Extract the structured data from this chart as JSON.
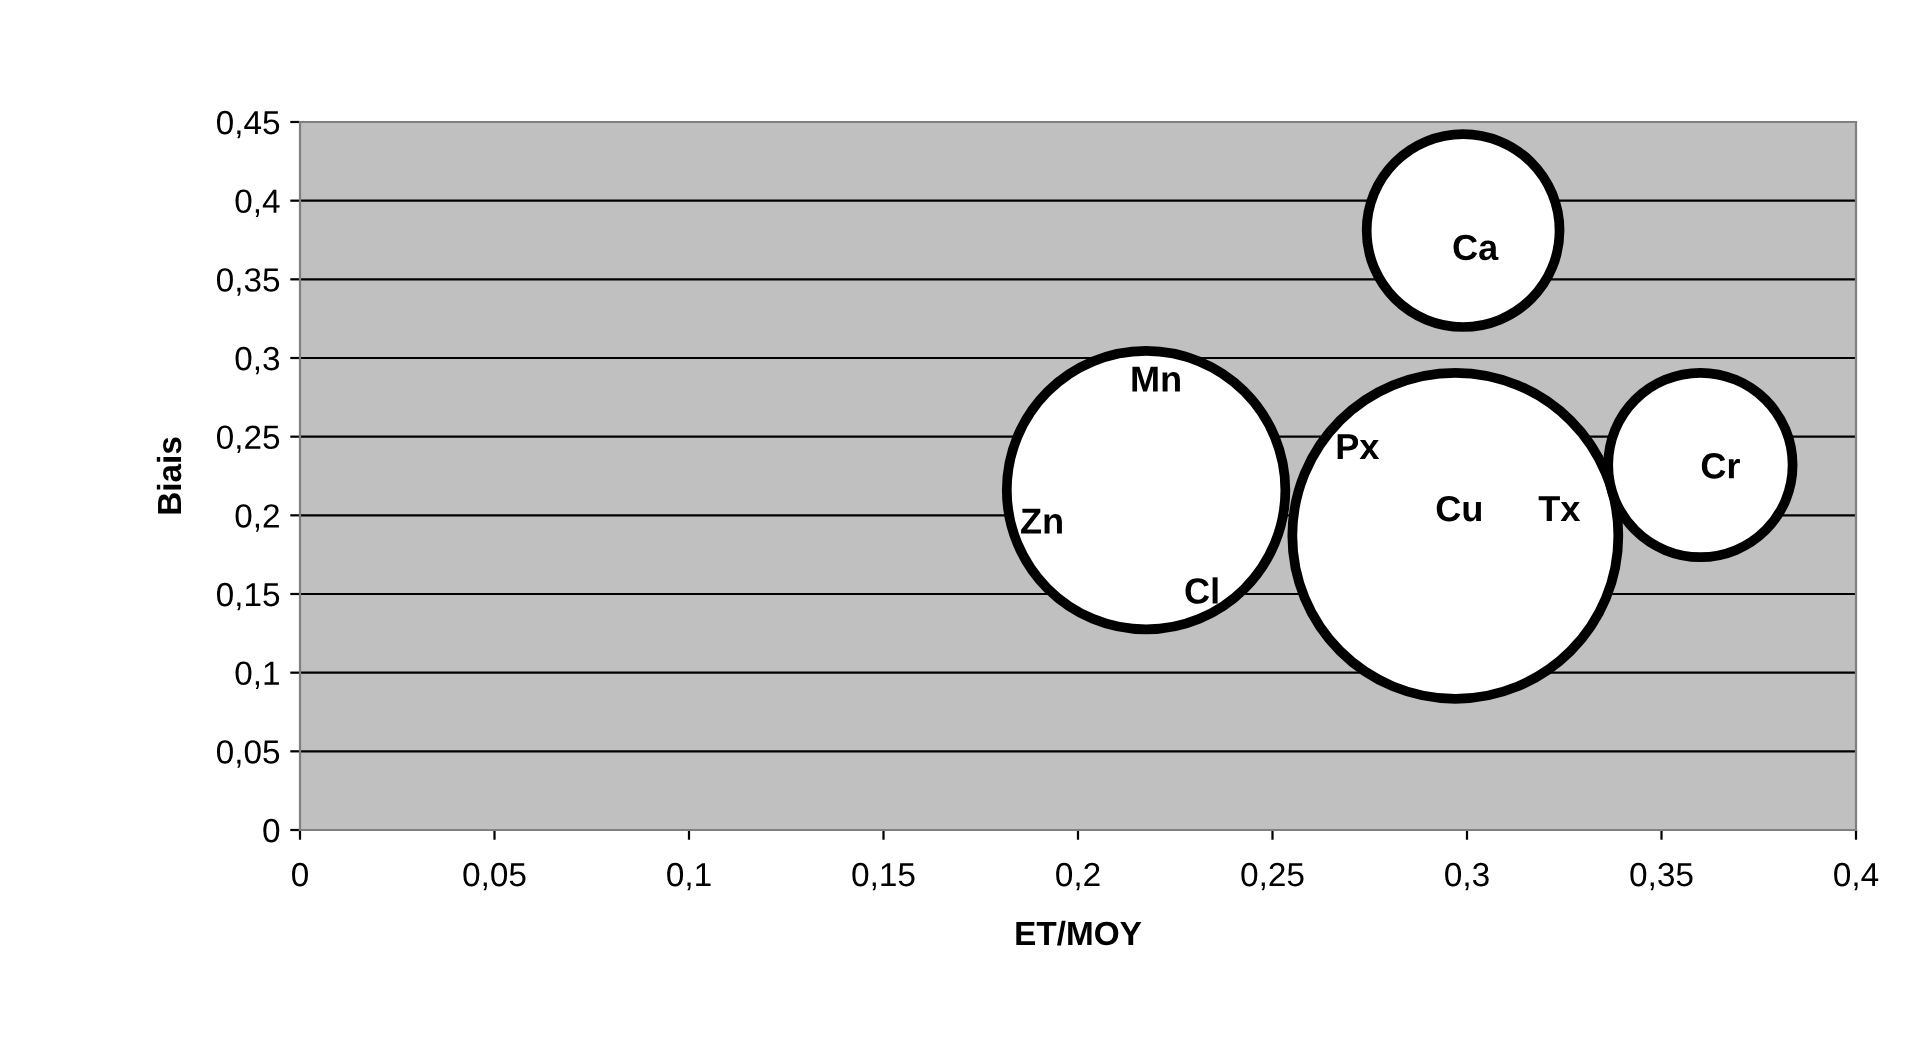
{
  "chart_data": {
    "type": "bubble",
    "xlabel": "ET/MOY",
    "ylabel": "Biais",
    "series": [
      {
        "color": "#ffffff",
        "x": [
          0.2175,
          0.297,
          0.299,
          0.36
        ],
        "values": [
          0.216,
          0.187,
          0.381,
          0.232
        ],
        "sizes": [
          0.73,
          1,
          0.35,
          0.32
        ]
      }
    ],
    "annotations": [
      "Mn",
      "Zn",
      "Cl",
      "Px",
      "Cu",
      "Tx",
      "Ca",
      "Cr"
    ],
    "xlim": [
      0,
      0.4
    ],
    "ylim": [
      0,
      0.45
    ],
    "xticks": [
      0,
      {
        "value": 0.05,
        "label": "0,05"
      },
      {
        "value": 0.1,
        "label": "0,1"
      },
      {
        "value": 0.15,
        "label": "0,15"
      },
      {
        "value": 0.2,
        "label": "0,2"
      },
      {
        "value": 0.25,
        "label": "0,25"
      },
      {
        "value": 0.3,
        "label": "0,3"
      },
      {
        "value": 0.35,
        "label": "0,35"
      },
      {
        "value": 0.4,
        "label": "0,4"
      }
    ],
    "yticks": [
      0,
      {
        "value": 0.05,
        "label": "0,05"
      },
      {
        "value": 0.1,
        "label": "0,1"
      },
      {
        "value": 0.15,
        "label": "0,15"
      },
      {
        "value": 0.2,
        "label": "0,2"
      },
      {
        "value": 0.25,
        "label": "0,25"
      },
      {
        "value": 0.3,
        "label": "0,3"
      },
      {
        "value": 0.35,
        "label": "0,35"
      },
      {
        "value": 0.4,
        "label": "0,4"
      },
      {
        "value": 0.45,
        "label": "0,45"
      }
    ],
    "grid": "y",
    "marker": "circle",
    "legend": false
  }
}
